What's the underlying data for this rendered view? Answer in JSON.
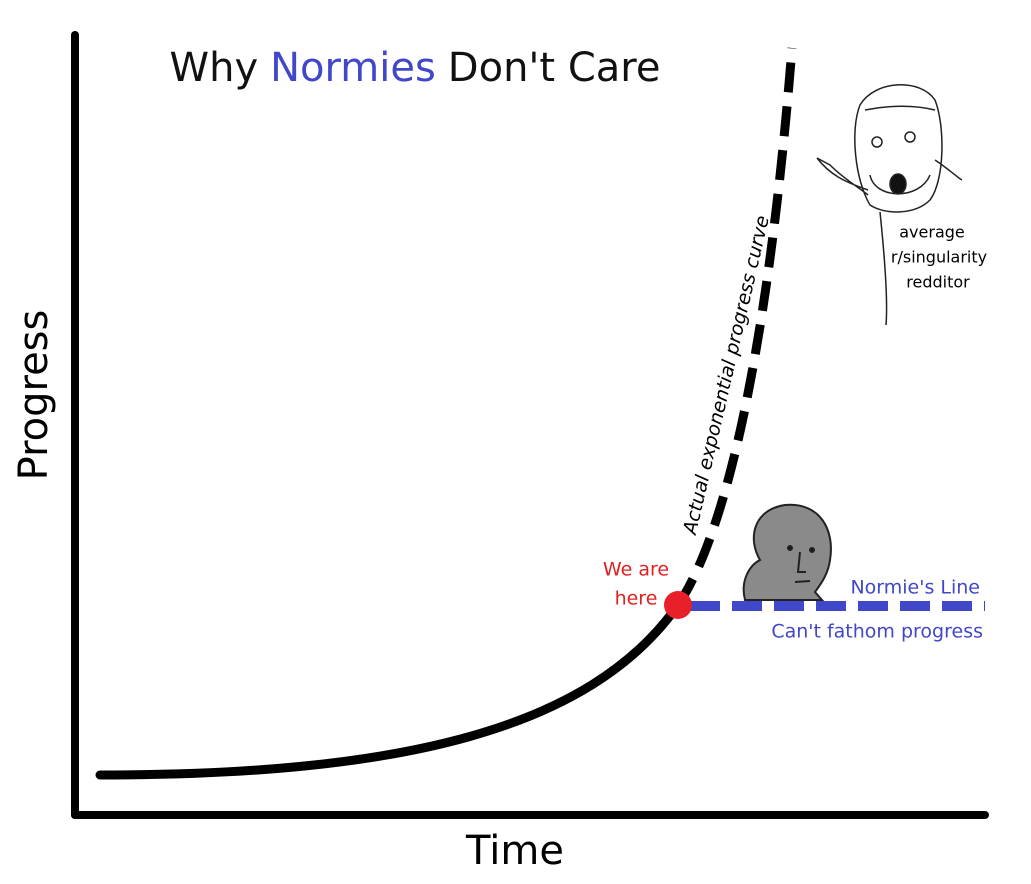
{
  "title": {
    "prefix": "Why",
    "highlight": "Normies",
    "suffix": "Don't Care"
  },
  "axes": {
    "y_label": "Progress",
    "x_label": "Time"
  },
  "curve_label": "Actual exponential progress curve",
  "marker": {
    "line1": "We are",
    "line2": "here"
  },
  "normie_line": {
    "label": "Normie's Line",
    "caption": "Can't fathom progress"
  },
  "redditor": {
    "line1": "average",
    "line2": "r/singularity",
    "line3": "redditor"
  }
}
